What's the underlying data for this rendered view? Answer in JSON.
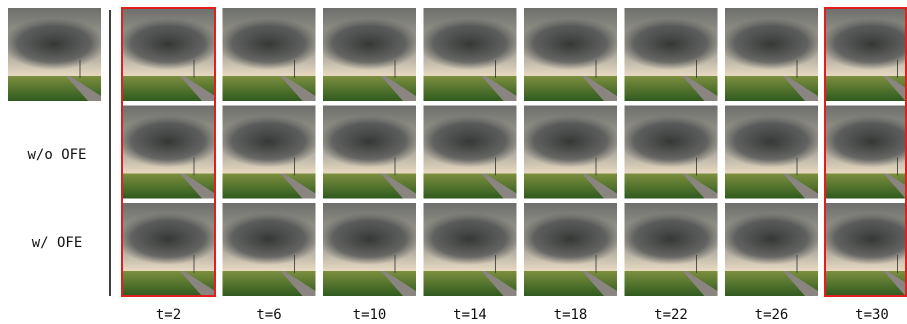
{
  "row_labels": [
    "w/o OFE",
    "w/ OFE"
  ],
  "column_labels": [
    "t=2",
    "t=6",
    "t=10",
    "t=14",
    "t=18",
    "t=22",
    "t=26",
    "t=30"
  ]
}
